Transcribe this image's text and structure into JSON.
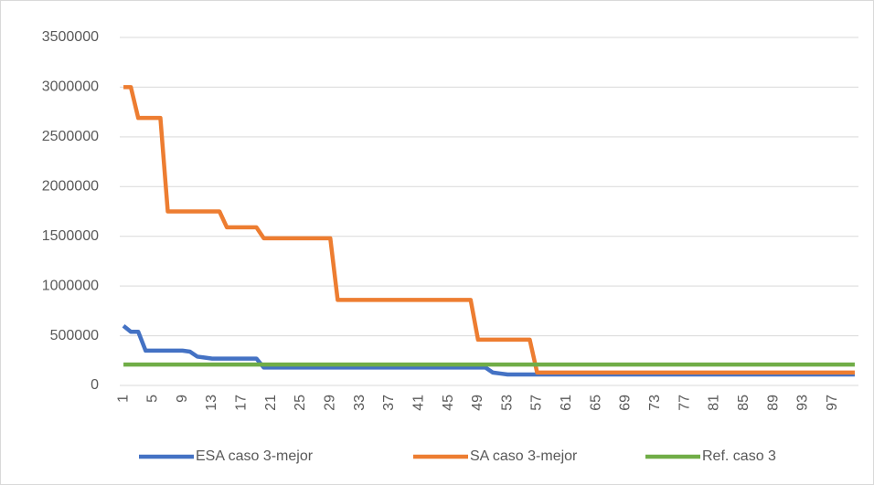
{
  "chart_data": {
    "type": "line",
    "categories": [
      1,
      null,
      null,
      null,
      5,
      null,
      null,
      null,
      9,
      null,
      null,
      null,
      13,
      null,
      null,
      null,
      17,
      null,
      null,
      null,
      21,
      null,
      null,
      null,
      25,
      null,
      null,
      null,
      29,
      null,
      null,
      null,
      33,
      null,
      null,
      null,
      37,
      null,
      null,
      null,
      41,
      null,
      null,
      null,
      45,
      null,
      null,
      null,
      49,
      null,
      null,
      null,
      53,
      null,
      null,
      null,
      57,
      null,
      null,
      null,
      61,
      null,
      null,
      null,
      65,
      null,
      null,
      null,
      69,
      null,
      null,
      null,
      73,
      null,
      null,
      null,
      77,
      null,
      null,
      null,
      81,
      null,
      null,
      null,
      85,
      null,
      null,
      null,
      89,
      null,
      null,
      null,
      93,
      null,
      null,
      null,
      97,
      null,
      null,
      null
    ],
    "series": [
      {
        "name": "ESA caso 3-mejor",
        "color": "#4472c4",
        "values": [
          600000,
          540000,
          540000,
          350000,
          350000,
          350000,
          350000,
          350000,
          350000,
          340000,
          290000,
          280000,
          270000,
          270000,
          270000,
          270000,
          270000,
          270000,
          270000,
          180000,
          180000,
          180000,
          180000,
          180000,
          180000,
          180000,
          180000,
          180000,
          180000,
          180000,
          180000,
          180000,
          180000,
          180000,
          180000,
          180000,
          180000,
          180000,
          180000,
          180000,
          180000,
          180000,
          180000,
          180000,
          180000,
          180000,
          180000,
          180000,
          180000,
          180000,
          130000,
          120000,
          110000,
          110000,
          110000,
          110000,
          110000,
          110000,
          110000,
          110000,
          110000,
          110000,
          110000,
          110000,
          110000,
          110000,
          110000,
          110000,
          110000,
          110000,
          110000,
          110000,
          110000,
          110000,
          110000,
          110000,
          110000,
          110000,
          110000,
          110000,
          110000,
          110000,
          110000,
          110000,
          110000,
          110000,
          110000,
          110000,
          110000,
          110000,
          110000,
          110000,
          110000,
          110000,
          110000,
          110000,
          110000,
          110000,
          110000,
          110000
        ]
      },
      {
        "name": "SA caso 3-mejor",
        "color": "#ed7d31",
        "values": [
          3000000,
          3000000,
          2690000,
          2690000,
          2690000,
          2690000,
          1750000,
          1750000,
          1750000,
          1750000,
          1750000,
          1750000,
          1750000,
          1750000,
          1590000,
          1590000,
          1590000,
          1590000,
          1590000,
          1480000,
          1480000,
          1480000,
          1480000,
          1480000,
          1480000,
          1480000,
          1480000,
          1480000,
          1480000,
          860000,
          860000,
          860000,
          860000,
          860000,
          860000,
          860000,
          860000,
          860000,
          860000,
          860000,
          860000,
          860000,
          860000,
          860000,
          860000,
          860000,
          860000,
          860000,
          460000,
          460000,
          460000,
          460000,
          460000,
          460000,
          460000,
          460000,
          130000,
          130000,
          130000,
          130000,
          130000,
          130000,
          130000,
          130000,
          130000,
          130000,
          130000,
          130000,
          130000,
          130000,
          130000,
          130000,
          130000,
          130000,
          130000,
          130000,
          130000,
          130000,
          130000,
          130000,
          130000,
          130000,
          130000,
          130000,
          130000,
          130000,
          130000,
          130000,
          130000,
          130000,
          130000,
          130000,
          130000,
          130000,
          130000,
          130000,
          130000,
          130000,
          130000,
          130000
        ]
      },
      {
        "name": "Ref. caso 3",
        "color": "#70ad47",
        "values": [
          210000,
          210000,
          210000,
          210000,
          210000,
          210000,
          210000,
          210000,
          210000,
          210000,
          210000,
          210000,
          210000,
          210000,
          210000,
          210000,
          210000,
          210000,
          210000,
          210000,
          210000,
          210000,
          210000,
          210000,
          210000,
          210000,
          210000,
          210000,
          210000,
          210000,
          210000,
          210000,
          210000,
          210000,
          210000,
          210000,
          210000,
          210000,
          210000,
          210000,
          210000,
          210000,
          210000,
          210000,
          210000,
          210000,
          210000,
          210000,
          210000,
          210000,
          210000,
          210000,
          210000,
          210000,
          210000,
          210000,
          210000,
          210000,
          210000,
          210000,
          210000,
          210000,
          210000,
          210000,
          210000,
          210000,
          210000,
          210000,
          210000,
          210000,
          210000,
          210000,
          210000,
          210000,
          210000,
          210000,
          210000,
          210000,
          210000,
          210000,
          210000,
          210000,
          210000,
          210000,
          210000,
          210000,
          210000,
          210000,
          210000,
          210000,
          210000,
          210000,
          210000,
          210000,
          210000,
          210000,
          210000,
          210000,
          210000,
          210000
        ]
      }
    ],
    "ylim": [
      0,
      3500000
    ],
    "yticks": [
      0,
      500000,
      1000000,
      1500000,
      2000000,
      2500000,
      3000000,
      3500000
    ],
    "grid": true,
    "legend": "bottom"
  }
}
